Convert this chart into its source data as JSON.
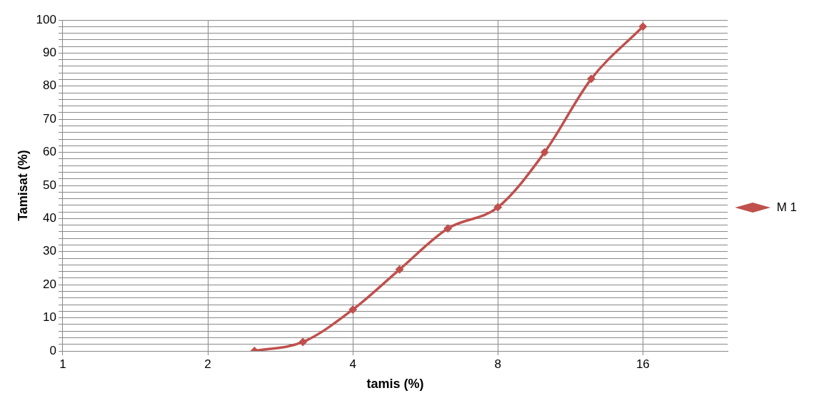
{
  "chart_data": {
    "type": "line",
    "xlabel": "tamis (%)",
    "ylabel": "Tamisat (%)",
    "x": [
      2.5,
      3.15,
      4,
      5,
      6.3,
      8,
      10,
      12.5,
      16
    ],
    "series": [
      {
        "name": "M 1",
        "color": "#c0504d",
        "values": [
          0,
          2.7,
          12.5,
          24.6,
          37,
          43.4,
          60,
          82.2,
          98
        ]
      }
    ],
    "log": "x",
    "xlim": [
      1,
      24
    ],
    "xticks": [
      1,
      2,
      4,
      8,
      16
    ],
    "ylim": [
      0,
      100
    ],
    "yticks": [
      0,
      {
        "value": 2,
        "label": null
      },
      {
        "value": 4,
        "label": null
      },
      {
        "value": 6,
        "label": null
      },
      {
        "value": 8,
        "label": null
      },
      10,
      {
        "value": 12,
        "label": null
      },
      {
        "value": 14,
        "label": null
      },
      {
        "value": 16,
        "label": null
      },
      {
        "value": 18,
        "label": null
      },
      20,
      {
        "value": 22,
        "label": null
      },
      {
        "value": 24,
        "label": null
      },
      {
        "value": 26,
        "label": null
      },
      {
        "value": 28,
        "label": null
      },
      30,
      {
        "value": 32,
        "label": null
      },
      {
        "value": 34,
        "label": null
      },
      {
        "value": 36,
        "label": null
      },
      {
        "value": 38,
        "label": null
      },
      40,
      {
        "value": 42,
        "label": null
      },
      {
        "value": 44,
        "label": null
      },
      {
        "value": 46,
        "label": null
      },
      {
        "value": 48,
        "label": null
      },
      50,
      {
        "value": 52,
        "label": null
      },
      {
        "value": 54,
        "label": null
      },
      {
        "value": 56,
        "label": null
      },
      {
        "value": 58,
        "label": null
      },
      60,
      {
        "value": 62,
        "label": null
      },
      {
        "value": 64,
        "label": null
      },
      {
        "value": 66,
        "label": null
      },
      {
        "value": 68,
        "label": null
      },
      70,
      {
        "value": 72,
        "label": null
      },
      {
        "value": 74,
        "label": null
      },
      {
        "value": 76,
        "label": null
      },
      {
        "value": 78,
        "label": null
      },
      80,
      {
        "value": 82,
        "label": null
      },
      {
        "value": 84,
        "label": null
      },
      {
        "value": 86,
        "label": null
      },
      {
        "value": 88,
        "label": null
      },
      90,
      {
        "value": 92,
        "label": null
      },
      {
        "value": 94,
        "label": null
      },
      {
        "value": 96,
        "label": null
      },
      {
        "value": 98,
        "label": null
      },
      100
    ],
    "grid": true,
    "legend": "right",
    "marker": "diamond",
    "line_style": "solid"
  }
}
